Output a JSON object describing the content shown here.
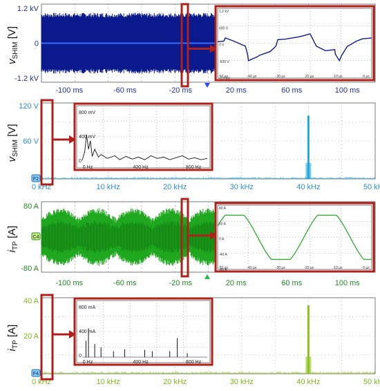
{
  "colors": {
    "voltage_trace": "#0a1a8c",
    "voltage_spectrum": "#20a8e0",
    "current_trace": "#1fa81f",
    "current_spectrum": "#8cc21a",
    "zoom_box": "#b0201a",
    "axis_text_voltage": "#2030a0",
    "axis_text_current": "#208a20",
    "grid": "#9a9a9a"
  },
  "chart_data": [
    {
      "type": "line",
      "ylabel": "v_SHIM [V]",
      "y_ticks": [
        "1.2 kV",
        "0",
        "-1.2 kV"
      ],
      "x_ticks": [
        "-100 ms",
        "-60 ms",
        "-20 ms",
        "20 ms",
        "60 ms",
        "100 ms"
      ],
      "xlim": [
        -120,
        120
      ],
      "ylim": [
        -1.5,
        1.5
      ],
      "series": [
        {
          "envelope_max": 1.2,
          "envelope_min": -1.2
        }
      ],
      "inset": {
        "type": "line",
        "y_ticks": [
          "1.2 kV",
          "600 V",
          "0 V",
          "-600 V",
          "-1.2 kV"
        ],
        "x_ticks": [
          "-50 µs",
          "-40 µs",
          "-30 µs",
          "-20 µs",
          "-10 µs",
          "0 µs"
        ],
        "xlim": [
          -50,
          0
        ],
        "ylim": [
          -1200,
          1200
        ],
        "x": [
          -50,
          -48,
          -47.5,
          -45,
          -41,
          -40.3,
          -40,
          -37,
          -36.5,
          -33,
          -31.5,
          -31,
          -30.5,
          -28,
          -24,
          -22,
          -20,
          -19.5,
          -18,
          -15,
          -12,
          -11.8,
          -10.5,
          -9.8,
          -8,
          -5,
          -3,
          0
        ],
        "y": [
          50,
          70,
          180,
          80,
          -100,
          -380,
          -600,
          -460,
          -420,
          -290,
          -150,
          -80,
          120,
          140,
          210,
          260,
          320,
          220,
          -100,
          -260,
          -220,
          -380,
          -600,
          -430,
          -120,
          70,
          150,
          180
        ]
      }
    },
    {
      "type": "bar",
      "ylabel": "v_SHIM [V]",
      "y_ticks": [
        "120 V",
        "60 V",
        "0"
      ],
      "x_ticks": [
        "0 kHz",
        "10 kHz",
        "20 kHz",
        "30 kHz",
        "40 kHz",
        "50 kHz"
      ],
      "xlim": [
        0,
        50
      ],
      "ylim": [
        0,
        120
      ],
      "peaks": [
        {
          "x": 40,
          "y": 100
        }
      ],
      "inset": {
        "type": "line",
        "y_ticks": [
          "800 mV",
          "400 mV",
          "0"
        ],
        "x_ticks": [
          "0 Hz",
          "400 Hz",
          "800 Hz"
        ],
        "xlim": [
          0,
          1000
        ],
        "ylim": [
          0,
          800
        ],
        "x": [
          0,
          20,
          35,
          50,
          65,
          80,
          100,
          130,
          150,
          200,
          260,
          300,
          350,
          400,
          450,
          500,
          550,
          600,
          650,
          700,
          750,
          800,
          850,
          900,
          950,
          1000
        ],
        "y": [
          30,
          160,
          420,
          200,
          330,
          90,
          200,
          80,
          120,
          60,
          100,
          40,
          90,
          50,
          80,
          40,
          100,
          60,
          80,
          40,
          70,
          100,
          50,
          70,
          40,
          60
        ]
      }
    },
    {
      "type": "line",
      "ylabel": "i_TP [A]",
      "y_ticks": [
        "80 A",
        "0",
        "-80 A"
      ],
      "x_ticks": [
        "-100 ms",
        "-60 ms",
        "-20 ms",
        "20 ms",
        "60 ms",
        "100 ms"
      ],
      "xlim": [
        -120,
        120
      ],
      "ylim": [
        -100,
        100
      ],
      "series": [
        {
          "envelope_max": 60,
          "envelope_min": -60
        }
      ],
      "inset": {
        "type": "line",
        "y_ticks": [
          "80 A",
          "40 A",
          "0 A",
          "-40 A",
          "-80 A"
        ],
        "x_ticks": [
          "-50 µs",
          "-40 µs",
          "-30 µs",
          "-20 µs",
          "-10 µs",
          "0 µs"
        ],
        "xlim": [
          -50,
          0
        ],
        "ylim": [
          -80,
          80
        ],
        "period_us": 30,
        "amplitude": 55
      }
    },
    {
      "type": "bar",
      "ylabel": "i_TP [A]",
      "y_ticks": [
        "40 A",
        "20 A",
        "0"
      ],
      "x_ticks": [
        "0 kHz",
        "10 kHz",
        "20 kHz",
        "30 kHz",
        "40 kHz",
        "50 kHz"
      ],
      "xlim": [
        0,
        50
      ],
      "ylim": [
        0,
        40
      ],
      "peaks": [
        {
          "x": 40,
          "y": 36
        }
      ],
      "inset": {
        "type": "bar",
        "y_ticks": [
          "800 mA",
          "400 mA",
          "0"
        ],
        "x_ticks": [
          "0 Hz",
          "400 Hz",
          "800 Hz"
        ],
        "xlim": [
          0,
          1000
        ],
        "ylim": [
          0,
          800
        ],
        "x": [
          30,
          50,
          100,
          150,
          250,
          340,
          500,
          560,
          700,
          760,
          840
        ],
        "y": [
          250,
          440,
          200,
          150,
          90,
          120,
          110,
          90,
          90,
          290,
          60
        ]
      }
    }
  ]
}
